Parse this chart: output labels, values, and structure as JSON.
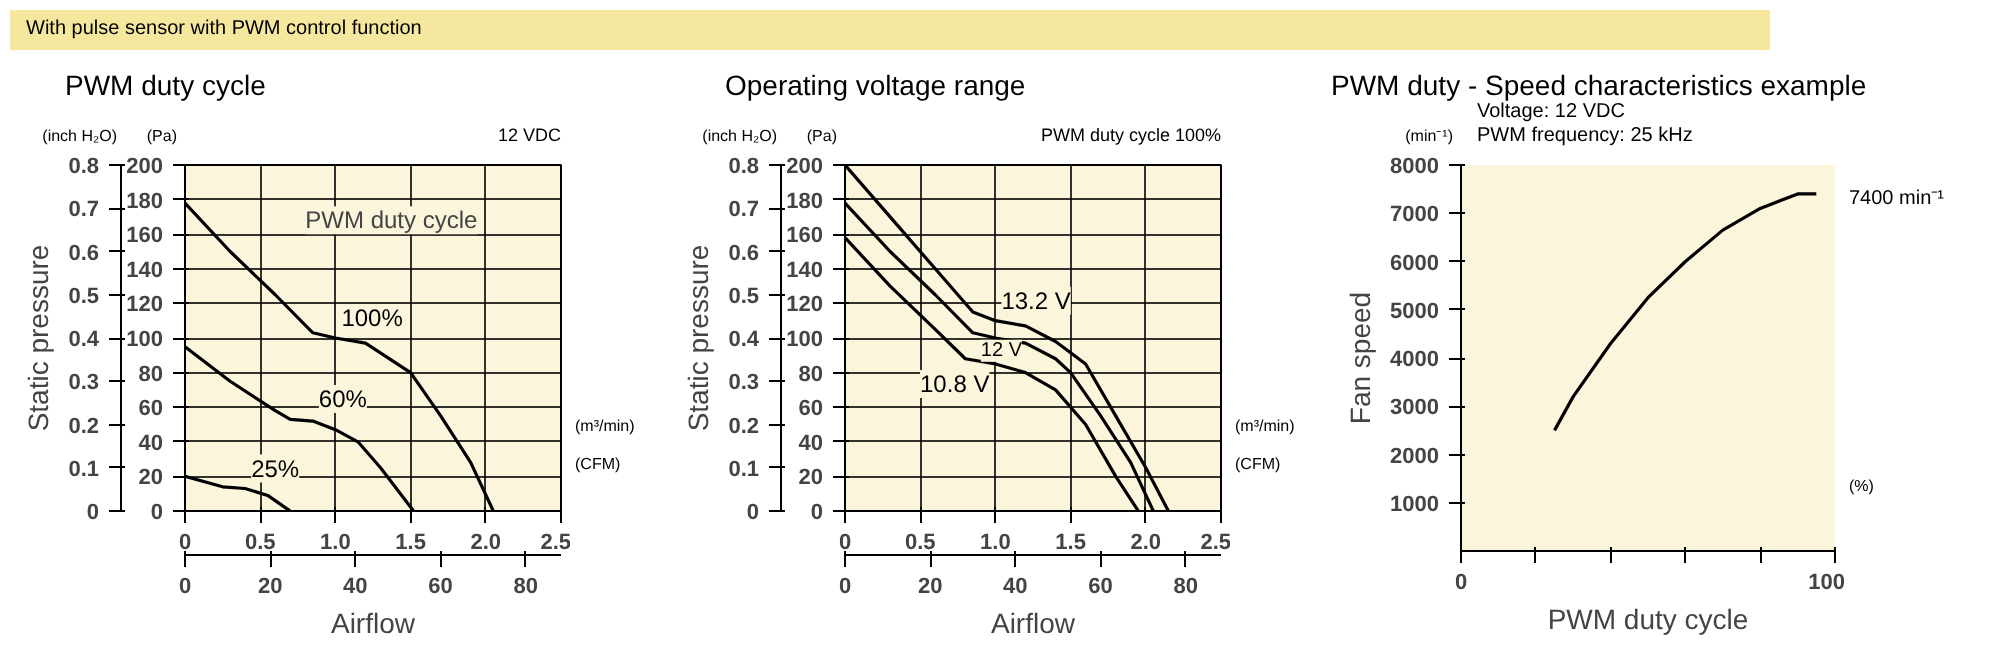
{
  "chart_data": [
    {
      "type": "other",
      "title": "With pulse sensor with PWM control function"
    },
    {
      "type": "line",
      "title": "PWM duty cycle",
      "xlabel": "Airflow",
      "y2label": "Static pressure",
      "legend_title": "PWM duty cycle",
      "grid": true,
      "xlim": [
        0,
        2.5
      ],
      "xticks": [
        0,
        0.5,
        {
          "value": 1,
          "label": "1.0"
        },
        1.5,
        {
          "value": 2,
          "label": "2.0"
        },
        2.5
      ],
      "ylim": [
        0,
        200
      ],
      "yticks": [
        0,
        20,
        40,
        60,
        80,
        100,
        120,
        140,
        160,
        180,
        200
      ],
      "y2lim": [
        0,
        0.8
      ],
      "y2ticks": [
        0,
        0.1,
        0.2,
        0.3,
        0.4,
        0.5,
        0.6,
        0.7,
        0.8
      ],
      "x2lim": [
        0,
        88.3
      ],
      "x2ticks": [
        0,
        20,
        40,
        60,
        80
      ],
      "annotations": [
        "12 VDC",
        "(Pa)",
        "(inch H₂O)",
        "(m³/min)",
        "(CFM)"
      ],
      "series": [
        {
          "name": "100%",
          "color": "#000000",
          "x": [
            0,
            0.3,
            0.6,
            0.85,
            1.0,
            1.2,
            1.5,
            1.7,
            1.9,
            2.05
          ],
          "values": [
            178,
            150,
            125,
            103,
            100,
            97,
            80,
            55,
            28,
            0
          ]
        },
        {
          "name": "60%",
          "color": "#000000",
          "x": [
            0,
            0.3,
            0.6,
            0.7,
            0.85,
            1.0,
            1.15,
            1.3,
            1.45,
            1.52
          ],
          "values": [
            95,
            75,
            58,
            53,
            52,
            47,
            40,
            25,
            8,
            0
          ]
        },
        {
          "name": "25%",
          "color": "#000000",
          "x": [
            0,
            0.25,
            0.4,
            0.55,
            0.65,
            0.7
          ],
          "values": [
            20,
            14,
            13,
            9,
            3,
            0
          ]
        }
      ]
    },
    {
      "type": "line",
      "title": "Operating voltage range",
      "xlabel": "Airflow",
      "y2label": "Static pressure",
      "grid": true,
      "xlim": [
        0,
        2.5
      ],
      "xticks": [
        0,
        0.5,
        {
          "value": 1,
          "label": "1.0"
        },
        1.5,
        {
          "value": 2,
          "label": "2.0"
        },
        2.5
      ],
      "ylim": [
        0,
        200
      ],
      "yticks": [
        0,
        20,
        40,
        60,
        80,
        100,
        120,
        140,
        160,
        180,
        200
      ],
      "y2lim": [
        0,
        0.8
      ],
      "y2ticks": [
        0,
        0.1,
        0.2,
        0.3,
        0.4,
        0.5,
        0.6,
        0.7,
        0.8
      ],
      "x2lim": [
        0,
        88.3
      ],
      "x2ticks": [
        0,
        20,
        40,
        60,
        80
      ],
      "annotations": [
        "PWM duty cycle 100%",
        "(Pa)",
        "(inch H₂O)",
        "(m³/min)",
        "(CFM)"
      ],
      "series": [
        {
          "name": "13.2 V",
          "color": "#000000",
          "x": [
            0,
            0.3,
            0.6,
            0.85,
            1.0,
            1.2,
            1.4,
            1.6,
            1.8,
            2.0,
            2.15
          ],
          "values": [
            200,
            170,
            140,
            115,
            110,
            107,
            98,
            85,
            55,
            25,
            0
          ]
        },
        {
          "name": "12 V",
          "color": "#000000",
          "x": [
            0,
            0.3,
            0.6,
            0.85,
            1.0,
            1.2,
            1.4,
            1.5,
            1.7,
            1.9,
            2.05
          ],
          "values": [
            178,
            150,
            125,
            103,
            100,
            97,
            88,
            80,
            55,
            28,
            0
          ]
        },
        {
          "name": "10.8 V",
          "color": "#000000",
          "x": [
            0,
            0.3,
            0.6,
            0.8,
            1.0,
            1.2,
            1.4,
            1.6,
            1.8,
            1.95
          ],
          "values": [
            158,
            130,
            105,
            88,
            85,
            80,
            70,
            50,
            20,
            0
          ]
        }
      ]
    },
    {
      "type": "line",
      "title": "PWM duty - Speed characteristics example",
      "xlabel": "PWM duty cycle",
      "ylabel": "Fan speed",
      "grid": false,
      "xlim": [
        0,
        100
      ],
      "xticks": [
        0,
        {
          "value": 20,
          "label": null
        },
        {
          "value": 40,
          "label": null
        },
        {
          "value": 60,
          "label": null
        },
        {
          "value": 80,
          "label": null
        },
        100
      ],
      "ylim": [
        0,
        8000
      ],
      "yticks": [
        1000,
        2000,
        3000,
        4000,
        5000,
        6000,
        7000,
        8000
      ],
      "annotations": [
        "Voltage: 12 VDC",
        "PWM frequency: 25 kHz",
        "(min⁻¹)",
        "(%)",
        {
          "text": "7400 min⁻¹",
          "x": 95,
          "y": 7400
        }
      ],
      "series": [
        {
          "color": "#000000",
          "x": [
            25,
            30,
            40,
            50,
            60,
            70,
            80,
            90,
            95
          ],
          "values": [
            2500,
            3200,
            4300,
            5250,
            6000,
            6650,
            7100,
            7400,
            7400
          ]
        }
      ]
    }
  ]
}
